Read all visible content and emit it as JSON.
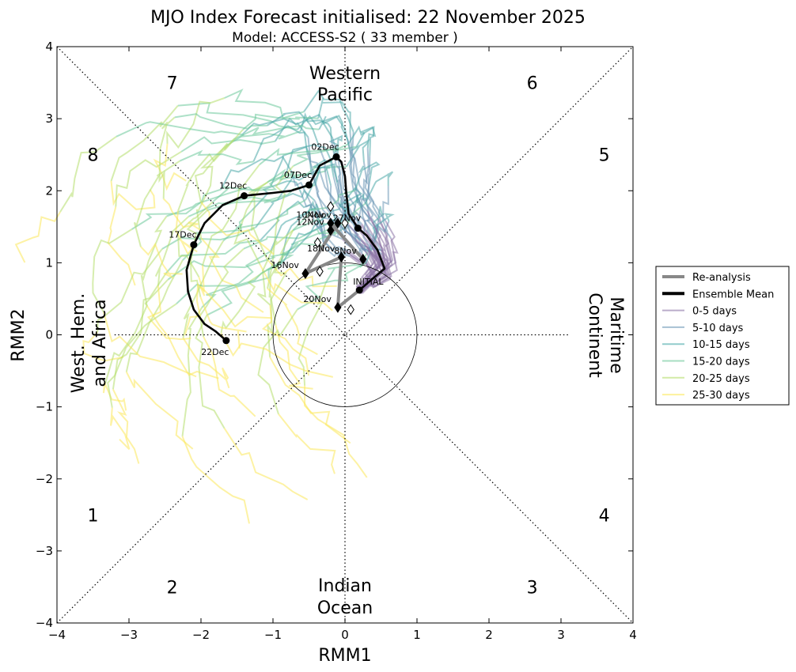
{
  "chart_data": {
    "type": "line",
    "title": "MJO Index Forecast initialised:  22  November 2025",
    "subtitle": "Model: ACCESS-S2 ( 33 member )",
    "xlabel": "RMM1",
    "ylabel": "RMM2",
    "xlim": [
      -4,
      4
    ],
    "ylim": [
      -4,
      4
    ],
    "xticks": [
      -4,
      -3,
      -2,
      -1,
      0,
      1,
      2,
      3,
      4
    ],
    "yticks": [
      -4,
      -3,
      -2,
      -1,
      0,
      1,
      2,
      3,
      4
    ],
    "xtick_labels": [
      "−4",
      "−3",
      "−2",
      "−1",
      "0",
      "1",
      "2",
      "3",
      "4"
    ],
    "ytick_labels": [
      "−4",
      "−3",
      "−2",
      "−1",
      "0",
      "1",
      "2",
      "3",
      "4"
    ],
    "phase_numbers": [
      {
        "label": "1",
        "x": -3.5,
        "y": -2.5
      },
      {
        "label": "2",
        "x": -2.4,
        "y": -3.5
      },
      {
        "label": "3",
        "x": 2.6,
        "y": -3.5
      },
      {
        "label": "4",
        "x": 3.6,
        "y": -2.5
      },
      {
        "label": "5",
        "x": 3.6,
        "y": 2.5
      },
      {
        "label": "6",
        "x": 2.6,
        "y": 3.5
      },
      {
        "label": "7",
        "x": -2.4,
        "y": 3.5
      },
      {
        "label": "8",
        "x": -3.5,
        "y": 2.5
      }
    ],
    "regions": {
      "top": [
        "Western",
        "Pacific"
      ],
      "bottom": [
        "Indian",
        "Ocean"
      ],
      "left": [
        "West. Hem.",
        "and Africa"
      ],
      "right": [
        "Maritime",
        "Continent"
      ]
    },
    "reanalysis": {
      "name": "Re-analysis",
      "color": "#888888",
      "points": [
        {
          "x": 0.25,
          "y": 1.05,
          "label": "8Nov"
        },
        {
          "x": -0.2,
          "y": 1.55,
          "label": "10Nov"
        },
        {
          "x": -0.2,
          "y": 1.45,
          "label": "12Nov"
        },
        {
          "x": -0.1,
          "y": 1.55,
          "label": "14Nov"
        },
        {
          "x": -0.55,
          "y": 0.85,
          "label": "16Nov"
        },
        {
          "x": -0.05,
          "y": 1.08,
          "label": "18Nov"
        },
        {
          "x": -0.1,
          "y": 0.38,
          "label": "20Nov"
        }
      ],
      "open_markers": [
        {
          "x": 0.08,
          "y": 0.35
        },
        {
          "x": -0.35,
          "y": 0.88
        },
        {
          "x": -0.38,
          "y": 1.28
        },
        {
          "x": -0.2,
          "y": 1.78
        },
        {
          "x": 0.0,
          "y": 1.55
        }
      ]
    },
    "ensemble_mean": {
      "name": "Ensemble Mean",
      "color": "#000000",
      "x": [
        0.2,
        0.35,
        0.55,
        0.45,
        0.3,
        0.18,
        0.05,
        0.02,
        0.0,
        -0.05,
        -0.12,
        -0.35,
        -0.5,
        -0.75,
        -1.0,
        -1.4,
        -1.7,
        -1.95,
        -2.1,
        -2.2,
        -2.18,
        -2.1,
        -1.95,
        -1.8,
        -1.65
      ],
      "y": [
        0.62,
        0.75,
        0.92,
        1.18,
        1.38,
        1.48,
        1.68,
        1.95,
        2.2,
        2.4,
        2.47,
        2.35,
        2.08,
        2.0,
        1.97,
        1.93,
        1.8,
        1.55,
        1.25,
        0.9,
        0.6,
        0.35,
        0.15,
        0.05,
        -0.08
      ],
      "labeled_points": [
        {
          "label": "INITIAL",
          "x": 0.2,
          "y": 0.62
        },
        {
          "label": "27Nov",
          "x": 0.18,
          "y": 1.48
        },
        {
          "label": "02Dec",
          "x": -0.12,
          "y": 2.47
        },
        {
          "label": "07Dec",
          "x": -0.5,
          "y": 2.08
        },
        {
          "label": "12Dec",
          "x": -1.4,
          "y": 1.93
        },
        {
          "label": "17Dec",
          "x": -2.1,
          "y": 1.25
        },
        {
          "label": "22Dec",
          "x": -1.65,
          "y": -0.08
        }
      ]
    },
    "ensemble_members": {
      "count": 33,
      "series": [
        {
          "name": "0-5 days",
          "color": "#8c74a6"
        },
        {
          "name": "5-10 days",
          "color": "#6a96b4"
        },
        {
          "name": "10-15 days",
          "color": "#4aa8a8"
        },
        {
          "name": "15-20 days",
          "color": "#6cc89a"
        },
        {
          "name": "20-25 days",
          "color": "#b4de6c"
        },
        {
          "name": "25-30 days",
          "color": "#fbe75a"
        }
      ]
    },
    "legend": {
      "placement": "right",
      "entries": [
        "Re-analysis",
        "Ensemble Mean",
        "0-5 days",
        "5-10 days",
        "10-15 days",
        "15-20 days",
        "20-25 days",
        "25-30 days"
      ]
    }
  }
}
